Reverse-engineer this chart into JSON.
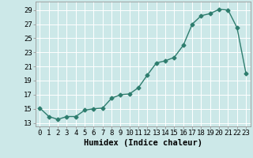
{
  "x": [
    0,
    1,
    2,
    3,
    4,
    5,
    6,
    7,
    8,
    9,
    10,
    11,
    12,
    13,
    14,
    15,
    16,
    17,
    18,
    19,
    20,
    21,
    22,
    23
  ],
  "y": [
    15.1,
    13.9,
    13.5,
    13.9,
    13.9,
    14.8,
    15.0,
    15.1,
    16.5,
    17.0,
    17.1,
    18.0,
    19.8,
    21.5,
    21.8,
    22.3,
    24.0,
    27.0,
    28.2,
    28.5,
    29.1,
    29.0,
    26.5,
    20.0
  ],
  "line_color": "#2e7d6e",
  "marker": "D",
  "markersize": 2.5,
  "linewidth": 1.0,
  "xlabel": "Humidex (Indice chaleur)",
  "xlim": [
    -0.5,
    23.5
  ],
  "ylim": [
    12.5,
    30.2
  ],
  "yticks": [
    13,
    15,
    17,
    19,
    21,
    23,
    25,
    27,
    29
  ],
  "xticks": [
    0,
    1,
    2,
    3,
    4,
    5,
    6,
    7,
    8,
    9,
    10,
    11,
    12,
    13,
    14,
    15,
    16,
    17,
    18,
    19,
    20,
    21,
    22,
    23
  ],
  "bg_color": "#cce8e8",
  "grid_color": "#b0d8d8",
  "tick_fontsize": 6.5,
  "xlabel_fontsize": 7.5
}
